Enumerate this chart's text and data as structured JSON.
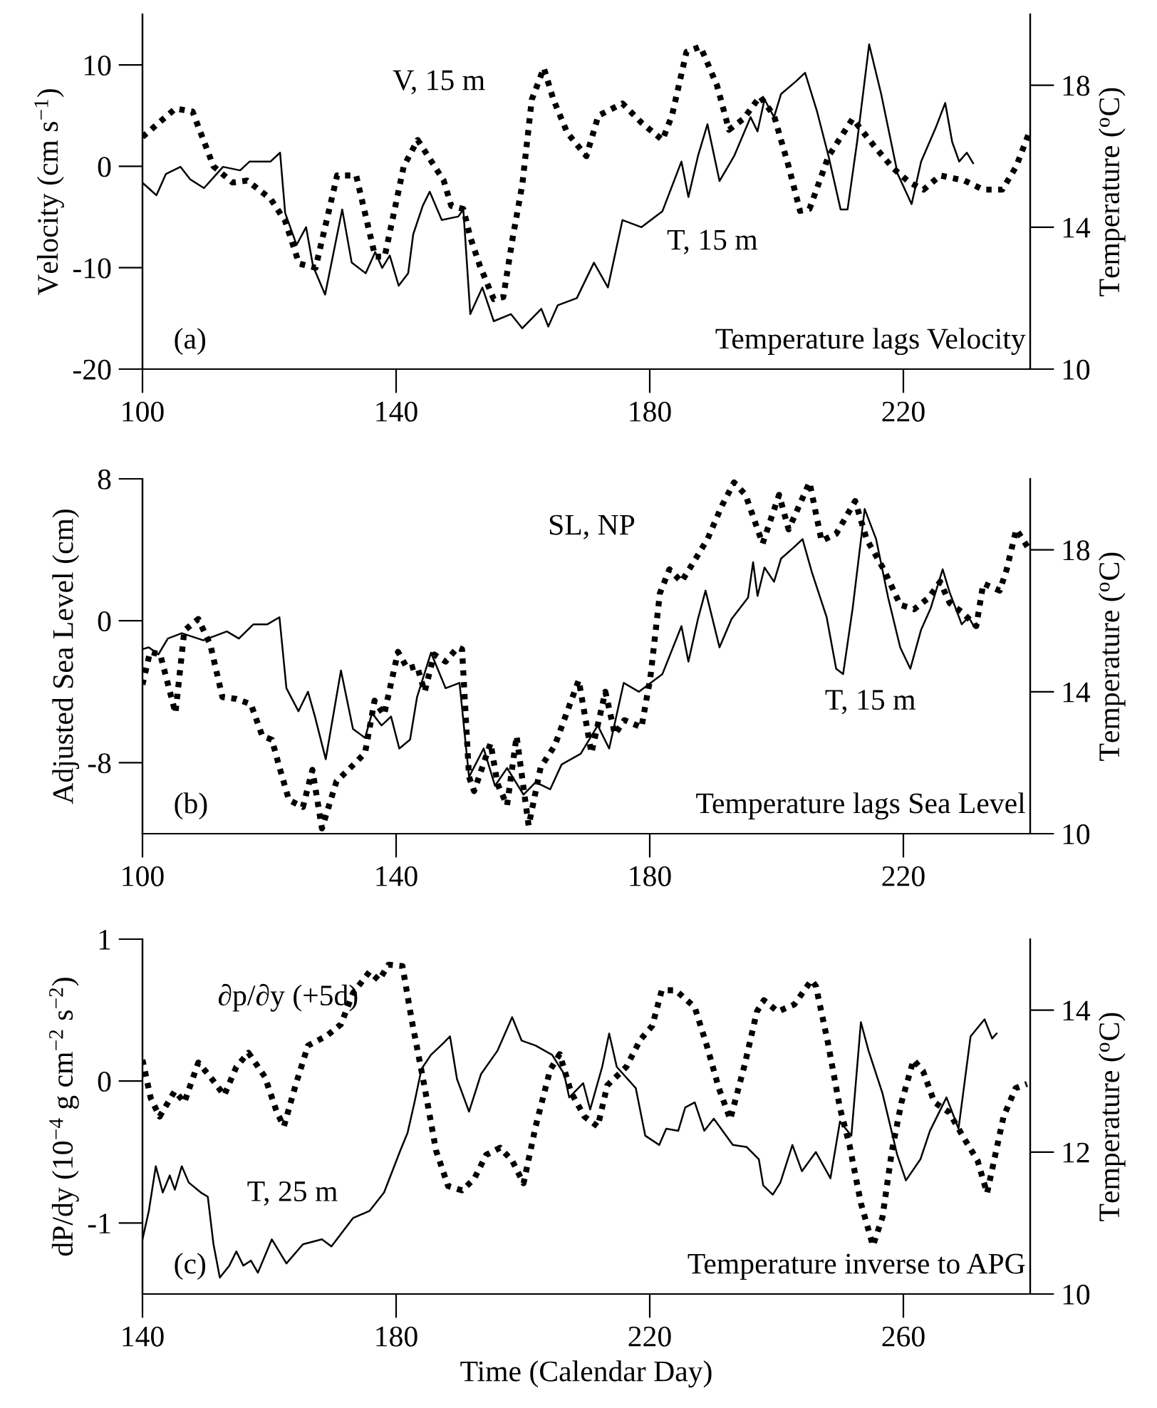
{
  "chart_data": [
    {
      "type": "line",
      "ylabel": "Velocity (cm s$^{−1}$)",
      "y2label": "Temperature ($^{o}$C)",
      "xlim": [
        100,
        240
      ],
      "xticks": [
        100,
        140,
        180,
        220
      ],
      "ylim": [
        -20,
        15
      ],
      "yticks": [
        -20,
        -10,
        0,
        10
      ],
      "y2lim": [
        10,
        20
      ],
      "y2ticks": [
        10,
        14,
        18
      ],
      "series": [
        {
          "color": "#000000",
          "line_style": "dotted",
          "x": [
            100,
            105.2,
            107.9,
            111.2,
            114.2,
            116.5,
            120.2,
            122.5,
            124.7,
            127.3,
            130.7,
            133.7,
            136.7,
            138.2,
            141.2,
            143.4,
            147.5,
            148.7,
            150.6,
            151.7,
            153.2,
            155.4,
            156.9,
            158.4,
            159.9,
            161.4,
            163.3,
            164.8,
            167.0,
            170.0,
            171.9,
            175.7,
            178.7,
            182.0,
            183.5,
            185.8,
            188.0,
            190.6,
            192.5,
            194.8,
            197.4,
            199.6,
            201.9,
            203.7,
            205.2,
            208.2,
            212.0,
            215.4,
            218.4,
            221.0,
            223.2,
            225.8,
            229.6,
            232.6,
            235.6,
            237.8,
            239.7
          ],
          "values": [
            2.9,
            5.7,
            5.4,
            0.0,
            -1.6,
            -1.4,
            -3.2,
            -5.4,
            -9.6,
            -10.0,
            -0.9,
            -0.9,
            -8.9,
            -8.9,
            0,
            2.6,
            -1.4,
            -3.9,
            -4.2,
            -7.0,
            -9.8,
            -13.1,
            -12.9,
            -7.0,
            -1.8,
            6.6,
            9.7,
            6.6,
            3.3,
            1.0,
            5.0,
            6.2,
            4.3,
            2.6,
            5.0,
            11.3,
            11.8,
            8.0,
            3.6,
            4.7,
            6.9,
            5.0,
            0,
            -4.4,
            -4.2,
            1.0,
            4.7,
            2.0,
            -0.2,
            -1.6,
            -2.3,
            -0.9,
            -1.4,
            -2.3,
            -2.3,
            0,
            3.1
          ]
        },
        {
          "color": "#000000",
          "line_style": "solid",
          "axis": "y2",
          "x": [
            100,
            102.2,
            103.7,
            106,
            107.5,
            109.7,
            112.7,
            115.4,
            116.9,
            120.2,
            121.7,
            122.5,
            124.3,
            125.8,
            126.9,
            128.8,
            131.5,
            133.0,
            135.2,
            136.7,
            137.8,
            139.0,
            140.4,
            141.9,
            142.7,
            144.2,
            145.3,
            147.2,
            149.8,
            150.6,
            151.7,
            153.6,
            155.4,
            158.1,
            159.9,
            162.9,
            164.0,
            165.5,
            168.5,
            171.2,
            173.4,
            175.7,
            178.7,
            182.0,
            185.0,
            186.1,
            187.6,
            189.1,
            191.0,
            193.3,
            195.9,
            197.0,
            198.1,
            199.6,
            200.7,
            203.0,
            204.5,
            206.4,
            208.2,
            210.1,
            211.2,
            212.7,
            214.6,
            216.5,
            219.1,
            221.3,
            222.8,
            225.1,
            226.6,
            227.7,
            228.8,
            230.0,
            231.0
          ],
          "values": [
            15.25,
            14.9,
            15.5,
            15.7,
            15.35,
            15.1,
            15.7,
            15.6,
            15.85,
            15.85,
            16.1,
            14.4,
            13.5,
            14.0,
            12.9,
            12.1,
            14.5,
            13.0,
            12.7,
            13.3,
            12.85,
            13.2,
            12.35,
            12.7,
            13.8,
            14.6,
            15.0,
            14.2,
            14.3,
            14.5,
            11.55,
            12.3,
            11.35,
            11.55,
            11.15,
            11.7,
            11.2,
            11.8,
            12.0,
            13.0,
            12.3,
            14.2,
            14.0,
            14.45,
            15.85,
            14.85,
            16.0,
            16.9,
            15.3,
            16.0,
            17.1,
            16.7,
            17.6,
            17.1,
            17.75,
            18.1,
            18.35,
            17.25,
            16.0,
            14.5,
            14.5,
            16.4,
            19.15,
            17.75,
            15.5,
            14.65,
            15.85,
            16.8,
            17.5,
            16.4,
            15.85,
            16.1,
            15.8
          ]
        }
      ],
      "annotations": [
        "(a)",
        "Temperature lags Velocity",
        "V, 15 m",
        "T, 15 m"
      ]
    },
    {
      "type": "line",
      "ylabel": "Adjusted Sea Level (cm)",
      "y2label": "Temperature ($^{o}$C)",
      "xlim": [
        100,
        240
      ],
      "xticks": [
        100,
        140,
        180,
        220
      ],
      "ylim": [
        -12,
        8
      ],
      "yticks": [
        -8,
        0,
        8
      ],
      "y2lim": [
        10,
        20
      ],
      "y2ticks": [
        10,
        14,
        18
      ],
      "series": [
        {
          "color": "#000000",
          "line_style": "dotted",
          "x": [
            100,
            101.2,
            102.8,
            105.2,
            106.6,
            108.8,
            110.7,
            112.6,
            114.8,
            117.1,
            118.9,
            120.4,
            121.6,
            123.1,
            125.3,
            126.8,
            128.3,
            130.6,
            133.6,
            135.1,
            136.6,
            138.1,
            140.3,
            141.8,
            143.3,
            144.5,
            146.0,
            147.8,
            149.7,
            150.4,
            151.5,
            152.3,
            154.9,
            156.0,
            157.5,
            159.0,
            160.9,
            162.8,
            165.0,
            166.9,
            168.8,
            170.8,
            173.0,
            174.5,
            176.0,
            178.7,
            180.1,
            181.6,
            183.1,
            185.0,
            186.9,
            189.1,
            191.4,
            193.3,
            195.1,
            197.8,
            200.4,
            201.9,
            205.2,
            207.1,
            209.4,
            212.4,
            214.2,
            216.9,
            219.5,
            221.7,
            224.0,
            225.8,
            227.3,
            229.2,
            231.5,
            232.6,
            235.2,
            236.3,
            237.8,
            239.7
          ],
          "values": [
            -3.6,
            -1.75,
            -1.9,
            -5.2,
            -0.55,
            0.1,
            -1.35,
            -4.3,
            -4.4,
            -4.7,
            -6.5,
            -6.7,
            -8.25,
            -10.1,
            -10.5,
            -8.4,
            -11.7,
            -9.05,
            -8.0,
            -7.45,
            -4.5,
            -5.3,
            -1.75,
            -2.7,
            -2.55,
            -4.0,
            -1.9,
            -2.3,
            -1.5,
            -1.6,
            -8.8,
            -9.6,
            -6.9,
            -9.2,
            -10.4,
            -6.5,
            -11.55,
            -8.25,
            -7.05,
            -5.2,
            -3.35,
            -7.45,
            -4.0,
            -6.4,
            -5.6,
            -6.0,
            -3.2,
            1.55,
            2.9,
            2.2,
            3.3,
            4.6,
            6.5,
            7.8,
            7.1,
            4.35,
            7.1,
            5.15,
            7.8,
            4.5,
            4.9,
            6.75,
            4.6,
            2.9,
            0.9,
            0.65,
            1.3,
            2.2,
            1.0,
            0.5,
            -0.3,
            2.1,
            1.7,
            2.9,
            5.15,
            4.1
          ]
        },
        {
          "color": "#000000",
          "line_style": "solid",
          "axis": "y2",
          "x": [
            100,
            101,
            102.5,
            104,
            106.2,
            109.6,
            113.3,
            115.2,
            117.5,
            119.7,
            121.6,
            122.7,
            124.6,
            126.1,
            127.2,
            128.9,
            131.3,
            133.2,
            135.1,
            136.2,
            137.7,
            139.2,
            140.5,
            142.2,
            143.3,
            145.5,
            147.8,
            150.0,
            151.5,
            153.8,
            155.6,
            157.5,
            160.1,
            162.0,
            164.3,
            166.1,
            169.1,
            171.8,
            173.6,
            175.9,
            178.3,
            182.0,
            185.0,
            186.1,
            187.6,
            188.8,
            191.0,
            192.9,
            195.5,
            196.3,
            197.0,
            198.1,
            199.6,
            200.7,
            202.6,
            204.1,
            205.6,
            207.9,
            209.4,
            210.5,
            212.0,
            213.9,
            215.7,
            217.6,
            219.5,
            221.1,
            222.8,
            224.3,
            226.2,
            227.3,
            229.2,
            230.3,
            231.1
          ],
          "values": [
            15.2,
            15.25,
            15.05,
            15.5,
            15.65,
            15.45,
            15.7,
            15.5,
            15.9,
            15.9,
            16.1,
            14.1,
            13.45,
            14.0,
            13.3,
            12.1,
            14.6,
            12.95,
            12.7,
            13.4,
            13.05,
            13.3,
            12.4,
            12.65,
            13.85,
            15.1,
            14.1,
            14.25,
            11.6,
            12.4,
            11.35,
            11.85,
            11.1,
            11.45,
            11.25,
            11.95,
            12.25,
            13.05,
            12.4,
            14.25,
            14.0,
            14.5,
            15.85,
            14.85,
            16.05,
            16.85,
            15.25,
            16.05,
            16.65,
            17.65,
            16.7,
            17.5,
            17.1,
            17.75,
            18.05,
            18.3,
            17.35,
            16.1,
            14.65,
            14.5,
            16.35,
            19.15,
            18.3,
            16.65,
            15.25,
            14.65,
            15.75,
            16.35,
            17.45,
            16.8,
            15.9,
            16.1,
            15.85
          ]
        }
      ],
      "annotations": [
        "(b)",
        "Temperature lags Sea Level",
        "SL, NP",
        "T, 15 m"
      ]
    },
    {
      "type": "line",
      "xlabel": "Time (Calendar Day)",
      "ylabel": "dP/dy (10$^{−4}$ g cm$^{−2}$ s$^{−2}$)",
      "y2label": "Temperature ($^{o}$C)",
      "xlim": [
        140,
        280
      ],
      "xticks": [
        140,
        180,
        220,
        260
      ],
      "ylim": [
        -1.5,
        1
      ],
      "yticks": [
        -1,
        0,
        1
      ],
      "y2lim": [
        10,
        15
      ],
      "y2ticks": [
        10,
        12,
        14
      ],
      "series": [
        {
          "color": "#000000",
          "line_style": "dotted",
          "x": [
            140,
            141.3,
            142.7,
            145.1,
            146.6,
            148.8,
            150.7,
            152.9,
            154.8,
            156.7,
            159.3,
            161.2,
            162.3,
            164.2,
            166.1,
            169.1,
            171.3,
            173.2,
            175.8,
            177.3,
            178.8,
            181.0,
            182.5,
            184.4,
            186.3,
            188.2,
            190.4,
            192.3,
            194.2,
            196.4,
            198.3,
            200.1,
            202.0,
            204.3,
            205.8,
            207.6,
            209.7,
            211.8,
            213.3,
            216.3,
            218.5,
            220.4,
            221.9,
            224.1,
            227.1,
            229.0,
            230.9,
            232.7,
            235.0,
            236.9,
            238.0,
            240.2,
            242.8,
            245.5,
            246.2,
            248.1,
            250.0,
            251.5,
            253.3,
            255.2,
            256.7,
            258.2,
            259.7,
            261.6,
            263.1,
            264.9,
            267.2,
            269.4,
            271.7,
            273.2,
            274.3,
            275.8,
            277.7,
            279.5
          ],
          "values": [
            0.15,
            -0.12,
            -0.25,
            -0.07,
            -0.15,
            0.13,
            0.03,
            -0.1,
            0.1,
            0.2,
            0.03,
            -0.22,
            -0.32,
            -0.02,
            0.25,
            0.32,
            0.4,
            0.62,
            0.77,
            0.71,
            0.82,
            0.81,
            0.42,
            -0.02,
            -0.49,
            -0.74,
            -0.77,
            -0.69,
            -0.52,
            -0.47,
            -0.56,
            -0.72,
            -0.32,
            0.08,
            0.19,
            -0.08,
            -0.25,
            -0.32,
            -0.03,
            0.1,
            0.29,
            0.39,
            0.64,
            0.64,
            0.52,
            0.25,
            -0.05,
            -0.27,
            0.12,
            0.49,
            0.57,
            0.49,
            0.54,
            0.71,
            0.67,
            0.27,
            -0.19,
            -0.45,
            -0.86,
            -1.16,
            -0.96,
            -0.49,
            -0.15,
            0.15,
            0.07,
            -0.15,
            -0.22,
            -0.39,
            -0.56,
            -0.79,
            -0.56,
            -0.25,
            -0.05,
            -0.02
          ]
        },
        {
          "color": "#000000",
          "line_style": "solid",
          "axis": "y2",
          "x": [
            140,
            141,
            142.1,
            143.2,
            144.3,
            145.1,
            146.2,
            147.3,
            149.2,
            150.3,
            151.2,
            152.2,
            153.7,
            154.8,
            155.9,
            157.1,
            158.2,
            160.4,
            162.7,
            165.3,
            168.3,
            169.8,
            173.2,
            175.8,
            178.1,
            180.7,
            181.8,
            182.9,
            184.0,
            185.5,
            187.4,
            188.5,
            189.6,
            191.5,
            193.4,
            196.0,
            198.3,
            199.8,
            202.0,
            204.6,
            206.5,
            207.3,
            209.5,
            210.6,
            212.5,
            213.6,
            214.8,
            217.8,
            219.3,
            221.5,
            222.6,
            224.5,
            225.6,
            227.1,
            228.6,
            230.1,
            233.1,
            235.3,
            237.2,
            237.9,
            239.4,
            240.6,
            242.5,
            244.0,
            246.2,
            248.5,
            250.0,
            251.8,
            253.3,
            254.5,
            256.7,
            259.0,
            260.4,
            262.7,
            264.2,
            266.8,
            268.7,
            270.6,
            272.8,
            274.0,
            274.7
          ],
          "values": [
            10.77,
            11.17,
            11.8,
            11.43,
            11.67,
            11.47,
            11.8,
            11.57,
            11.43,
            11.37,
            10.7,
            10.23,
            10.4,
            10.6,
            10.4,
            10.47,
            10.3,
            10.77,
            10.43,
            10.7,
            10.77,
            10.67,
            11.07,
            11.17,
            11.43,
            12.03,
            12.27,
            12.7,
            13.17,
            13.37,
            13.53,
            13.63,
            13.03,
            12.57,
            13.1,
            13.43,
            13.9,
            13.57,
            13.5,
            13.37,
            13.1,
            12.77,
            12.97,
            12.6,
            13.2,
            13.67,
            13.2,
            12.9,
            12.23,
            12.1,
            12.33,
            12.3,
            12.63,
            12.7,
            12.3,
            12.47,
            12.1,
            12.07,
            11.9,
            11.53,
            11.4,
            11.57,
            12.1,
            11.73,
            12.0,
            11.63,
            12.43,
            12.23,
            13.83,
            13.43,
            12.83,
            11.97,
            11.6,
            11.9,
            12.3,
            12.77,
            12.33,
            13.63,
            13.87,
            13.6,
            13.67
          ]
        }
      ],
      "annotations": [
        "(c)",
        "Temperature inverse to APG",
        "∂p/∂y (+5d)",
        "T, 25 m"
      ]
    }
  ]
}
